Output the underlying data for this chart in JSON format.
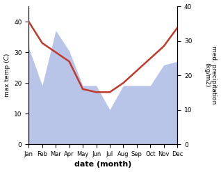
{
  "months": [
    "Jan",
    "Feb",
    "Mar",
    "Apr",
    "May",
    "Jun",
    "Jul",
    "Aug",
    "Sep",
    "Oct",
    "Nov",
    "Dec"
  ],
  "max_temp": [
    40,
    33,
    30,
    27,
    18,
    17,
    17,
    20,
    24,
    28,
    32,
    38
  ],
  "precipitation": [
    28,
    17,
    33,
    27,
    17,
    17,
    10,
    17,
    17,
    17,
    23,
    24
  ],
  "temp_color": "#c0392b",
  "precip_fill_color": "#b8c4e8",
  "ylabel_left": "max temp (C)",
  "ylabel_right": "med. precipitation\n(kg/m2)",
  "xlabel": "date (month)",
  "ylim_left": [
    0,
    45
  ],
  "ylim_right": [
    0,
    40
  ],
  "bg_color": "#ffffff"
}
